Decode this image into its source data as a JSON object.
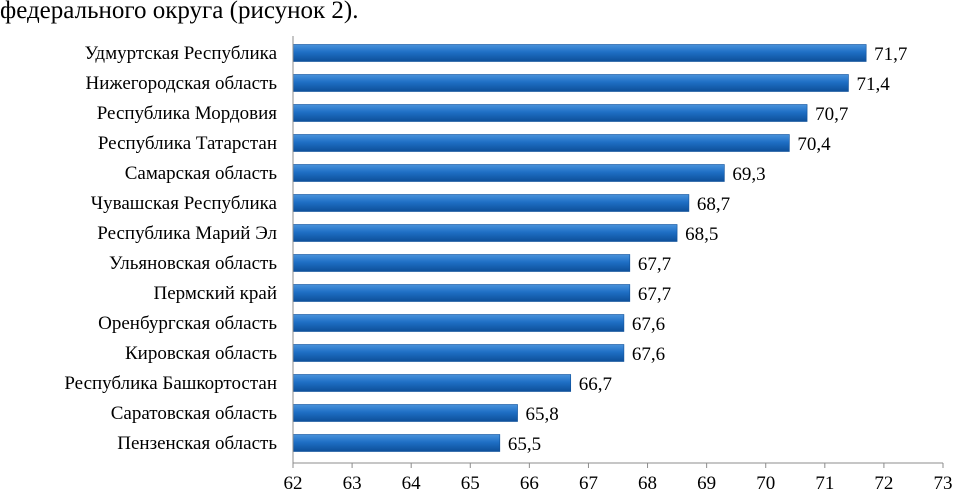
{
  "page": {
    "header_text": "федерального округа (рисунок 2)."
  },
  "chart_data": {
    "type": "bar",
    "orientation": "horizontal",
    "title": "",
    "xlabel": "",
    "ylabel": "",
    "xlim": [
      62,
      73
    ],
    "x_ticks": [
      62,
      63,
      64,
      65,
      66,
      67,
      68,
      69,
      70,
      71,
      72,
      73
    ],
    "grid": false,
    "bar_color": "#1f6fc5",
    "bar_color_dark": "#0d4f99",
    "bar_color_light": "#4a93dc",
    "categories": [
      "Удмуртская Республика",
      "Нижегородская область",
      "Республика Мордовия",
      "Республика Татарстан",
      "Самарская область",
      "Чувашская Республика",
      "Республика Марий Эл",
      "Ульяновская область",
      "Пермский край",
      "Оренбургская область",
      "Кировская область",
      "Республика Башкортостан",
      "Саратовская область",
      "Пензенская область"
    ],
    "values": [
      71.7,
      71.4,
      70.7,
      70.4,
      69.3,
      68.7,
      68.5,
      67.7,
      67.7,
      67.6,
      67.6,
      66.7,
      65.8,
      65.5
    ],
    "value_labels": [
      "71,7",
      "71,4",
      "70,7",
      "70,4",
      "69,3",
      "68,7",
      "68,5",
      "67,7",
      "67,7",
      "67,6",
      "67,6",
      "66,7",
      "65,8",
      "65,5"
    ]
  }
}
